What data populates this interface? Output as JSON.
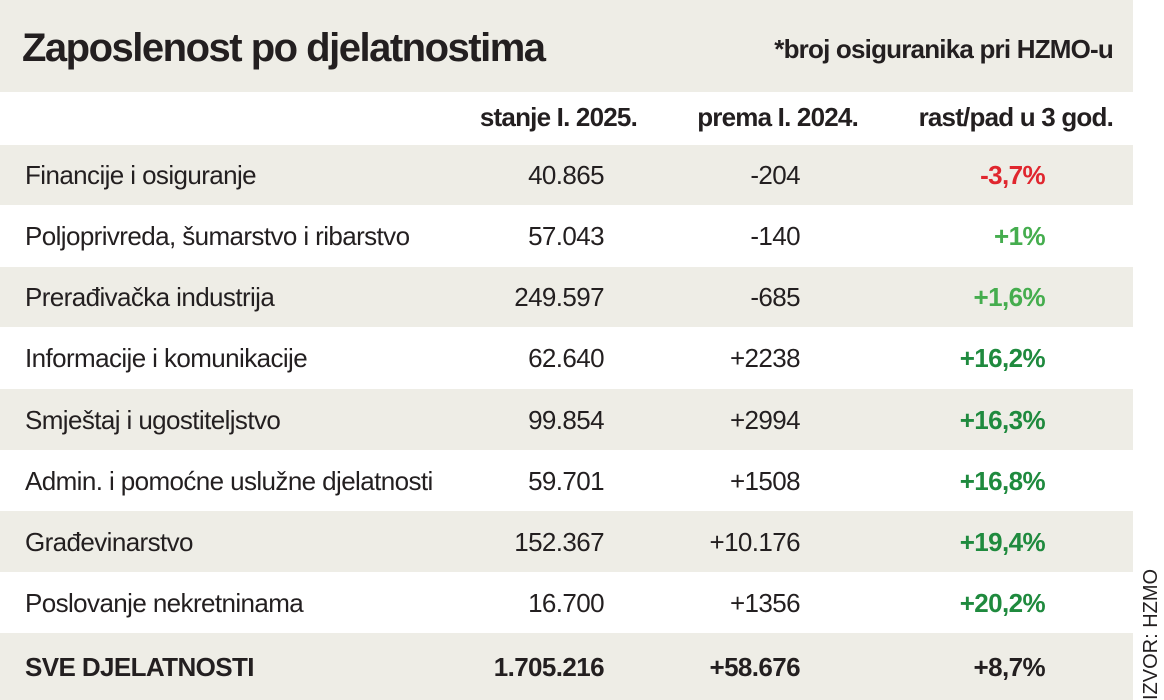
{
  "header": {
    "title": "Zaposlenost po djelatnostima",
    "note": "*broj osiguranika pri HZMO-u"
  },
  "table": {
    "columns": [
      "stanje I. 2025.",
      "prema I. 2024.",
      "rast/pad u 3 god."
    ],
    "rows": [
      {
        "name": "Financije i osiguranje",
        "cells": [
          "40.865",
          "-204",
          "-3,7%"
        ],
        "color": "#e0262e"
      },
      {
        "name": "Poljoprivreda, šumarstvo i ribarstvo",
        "cells": [
          "57.043",
          "-140",
          "+1%"
        ],
        "color": "#45ad4e"
      },
      {
        "name": "Prerađivačka industrija",
        "cells": [
          "249.597",
          "-685",
          "+1,6%"
        ],
        "color": "#45ad4e"
      },
      {
        "name": "Informacije i komunikacije",
        "cells": [
          "62.640",
          "+2238",
          "+16,2%"
        ],
        "color": "#1f8a3e"
      },
      {
        "name": "Smještaj i ugostiteljstvo",
        "cells": [
          "99.854",
          "+2994",
          "+16,3%"
        ],
        "color": "#1f8a3e"
      },
      {
        "name": "Admin. i pomoćne uslužne djelatnosti",
        "cells": [
          "59.701",
          "+1508",
          "+16,8%"
        ],
        "color": "#1f8a3e"
      },
      {
        "name": "Građevinarstvo",
        "cells": [
          "152.367",
          "+10.176",
          "+19,4%"
        ],
        "color": "#1f8a3e"
      },
      {
        "name": "Poslovanje nekretninama",
        "cells": [
          "16.700",
          "+1356",
          "+20,2%"
        ],
        "color": "#1f8a3e"
      }
    ],
    "total": {
      "name": "SVE DJELATNOSTI",
      "cells": [
        "1.705.216",
        "+58.676",
        "+8,7%"
      ]
    }
  },
  "source": "IZVOR: HZMO"
}
